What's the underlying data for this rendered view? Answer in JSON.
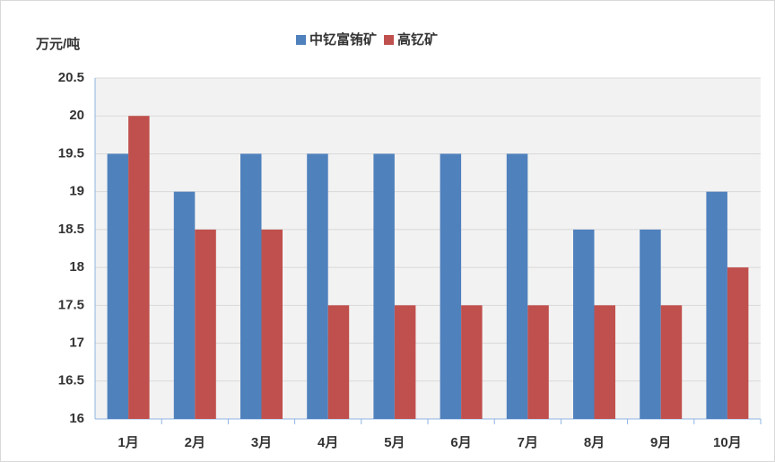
{
  "chart_data": {
    "type": "bar",
    "y_label": "万元/吨",
    "categories": [
      "1月",
      "2月",
      "3月",
      "4月",
      "5月",
      "6月",
      "7月",
      "8月",
      "9月",
      "10月"
    ],
    "series": [
      {
        "name": "中钇富铕矿",
        "color": "#4f81bd",
        "values": [
          19.5,
          19,
          19.5,
          19.5,
          19.5,
          19.5,
          19.5,
          18.5,
          18.5,
          19
        ]
      },
      {
        "name": "高钇矿",
        "color": "#c0504d",
        "values": [
          20,
          18.5,
          18.5,
          17.5,
          17.5,
          17.5,
          17.5,
          17.5,
          17.5,
          18
        ]
      }
    ],
    "ylim": [
      16,
      20.5
    ],
    "yticks": [
      16,
      16.5,
      17,
      17.5,
      18,
      18.5,
      19,
      19.5,
      20,
      20.5
    ],
    "grid": true,
    "legend": "top"
  }
}
